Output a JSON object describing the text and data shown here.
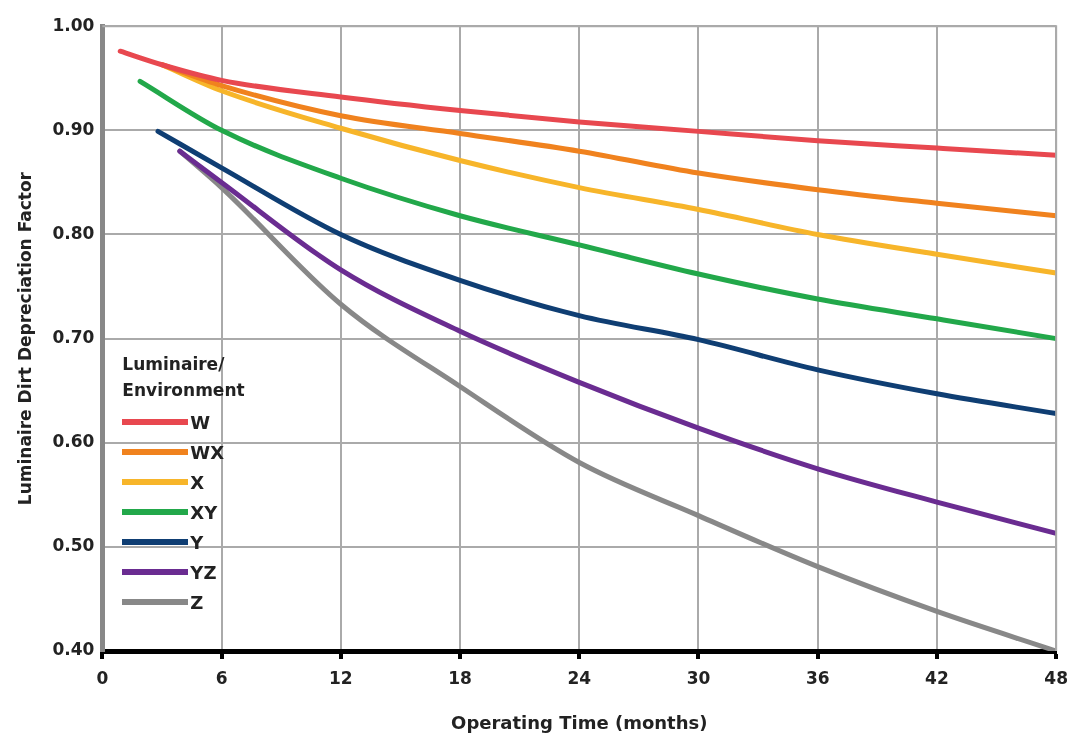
{
  "chart_data": {
    "type": "line",
    "xlabel": "Operating Time (months)",
    "ylabel": "Luminaire Dirt Depreciation Factor",
    "legend_title": "Luminaire/ Environment",
    "legend": "bottom left",
    "grid": true,
    "marker": "none",
    "line_style": "solid",
    "xlim": [
      0,
      48
    ],
    "xticks": [
      0,
      6,
      12,
      18,
      24,
      30,
      36,
      42,
      48
    ],
    "ylim": [
      0.4,
      1.0
    ],
    "yticks": [
      {
        "value": 0.4,
        "label": "0.40"
      },
      {
        "value": 0.5,
        "label": "0.50"
      },
      {
        "value": 0.6,
        "label": "0.60"
      },
      {
        "value": 0.7,
        "label": "0.70"
      },
      {
        "value": 0.8,
        "label": "0.80"
      },
      {
        "value": 0.9,
        "label": "0.90"
      },
      {
        "value": 1.0,
        "label": "1.00"
      }
    ],
    "series": [
      {
        "name": "W",
        "color": "#e8484f",
        "x": [
          0.9,
          3,
          6,
          12,
          18,
          24,
          30,
          36,
          42,
          48
        ],
        "values": [
          0.976,
          0.963,
          0.948,
          0.932,
          0.919,
          0.908,
          0.899,
          0.89,
          0.883,
          0.876
        ]
      },
      {
        "name": "WX",
        "color": "#f0821e",
        "x": [
          3,
          6,
          12,
          18,
          24,
          30,
          36,
          42,
          48
        ],
        "values": [
          0.963,
          0.943,
          0.914,
          0.897,
          0.88,
          0.859,
          0.843,
          0.83,
          0.818
        ]
      },
      {
        "name": "X",
        "color": "#f7b52a",
        "x": [
          3,
          6,
          12,
          18,
          24,
          30,
          36,
          42,
          48
        ],
        "values": [
          0.963,
          0.938,
          0.902,
          0.871,
          0.845,
          0.824,
          0.8,
          0.781,
          0.763
        ]
      },
      {
        "name": "XY",
        "color": "#22a84a",
        "x": [
          1.9,
          6,
          12,
          18,
          24,
          30,
          36,
          42,
          48
        ],
        "values": [
          0.947,
          0.9,
          0.854,
          0.818,
          0.79,
          0.762,
          0.738,
          0.719,
          0.7
        ]
      },
      {
        "name": "Y",
        "color": "#0f3e73",
        "x": [
          2.8,
          6,
          12,
          18,
          24,
          30,
          36,
          42,
          48
        ],
        "values": [
          0.899,
          0.864,
          0.8,
          0.756,
          0.722,
          0.699,
          0.67,
          0.647,
          0.628
        ]
      },
      {
        "name": "YZ",
        "color": "#6a2c91",
        "x": [
          3.9,
          6,
          12,
          18,
          24,
          30,
          36,
          42,
          48
        ],
        "values": [
          0.88,
          0.85,
          0.766,
          0.707,
          0.658,
          0.614,
          0.575,
          0.543,
          0.513
        ]
      },
      {
        "name": "Z",
        "color": "#888888",
        "x": [
          3.9,
          6,
          12,
          18,
          24,
          30,
          36,
          42,
          48
        ],
        "values": [
          0.88,
          0.845,
          0.733,
          0.654,
          0.581,
          0.53,
          0.481,
          0.438,
          0.4
        ]
      }
    ]
  }
}
